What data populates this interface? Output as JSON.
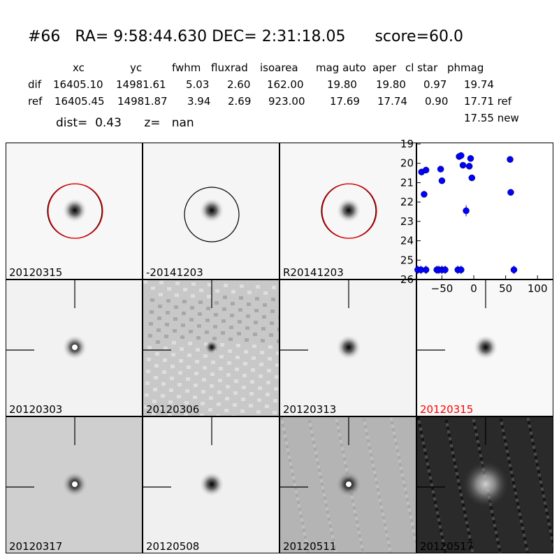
{
  "header": {
    "title": "#66   RA= 9:58:44.630 DEC= 2:31:18.05      score=60.0",
    "columns": [
      "xc",
      "yc",
      "fwhm",
      "fluxrad",
      "isoarea",
      "mag auto",
      "aper",
      "cl star",
      "phmag"
    ],
    "dif": {
      "label": "dif",
      "values": [
        "16405.10",
        "14981.61",
        "5.03",
        "2.60",
        "162.00",
        "19.80",
        "19.80",
        "0.97",
        "19.74"
      ]
    },
    "ref": {
      "label": "ref",
      "values": [
        "16405.45",
        "14981.87",
        "3.94",
        "2.69",
        "923.00",
        "17.69",
        "17.74",
        "0.90",
        "17.71 ref"
      ]
    },
    "phmag_new": "17.55 new",
    "dist_line": "dist=  0.43      z=   nan"
  },
  "panels": [
    {
      "label": "20120315",
      "color": "#000000",
      "bg": "#f7f7f7"
    },
    {
      "label": "-20141203",
      "color": "#000000",
      "bg": "#f5f5f5"
    },
    {
      "label": "R20141203",
      "color": "#000000",
      "bg": "#f7f7f7"
    },
    {
      "label": "20120303",
      "color": "#000000",
      "bg": "#f2f2f2"
    },
    {
      "label": "20120306",
      "color": "#000000",
      "bg": "#c8c8c8"
    },
    {
      "label": "20120313",
      "color": "#000000",
      "bg": "#f3f3f3"
    },
    {
      "label": "20120315",
      "color": "#ff0000",
      "bg": "#f8f8f8"
    },
    {
      "label": "20120317",
      "color": "#000000",
      "bg": "#cfcfcf"
    },
    {
      "label": "20120508",
      "color": "#000000",
      "bg": "#f0f0f0"
    },
    {
      "label": "20120511",
      "color": "#000000",
      "bg": "#b4b4b4"
    },
    {
      "label": "20120517",
      "color": "#000000",
      "bg": "#2a2a2a"
    }
  ],
  "chart_data": {
    "type": "scatter",
    "xlim": [
      -90,
      125
    ],
    "ylim": [
      26,
      19
    ],
    "xticks": [
      -50,
      0,
      50,
      100
    ],
    "yticks": [
      19,
      20,
      21,
      22,
      23,
      24,
      25,
      26
    ],
    "marker_color": "#0000ff",
    "points": [
      {
        "x": -82,
        "y": 20.45
      },
      {
        "x": -75,
        "y": 20.35
      },
      {
        "x": -78,
        "y": 21.6
      },
      {
        "x": -52,
        "y": 20.3
      },
      {
        "x": -50,
        "y": 20.9
      },
      {
        "x": -23,
        "y": 19.65
      },
      {
        "x": -20,
        "y": 19.6
      },
      {
        "x": -17,
        "y": 20.1
      },
      {
        "x": -7,
        "y": 20.15
      },
      {
        "x": -5,
        "y": 19.75
      },
      {
        "x": -3,
        "y": 20.75
      },
      {
        "x": -12,
        "y": 22.45
      },
      {
        "x": 57,
        "y": 19.8
      },
      {
        "x": 58,
        "y": 21.5
      },
      {
        "x": -88,
        "y": 25.5
      },
      {
        "x": -83,
        "y": 25.5
      },
      {
        "x": -75,
        "y": 25.5
      },
      {
        "x": -58,
        "y": 25.5
      },
      {
        "x": -55,
        "y": 25.5
      },
      {
        "x": -50,
        "y": 25.5
      },
      {
        "x": -45,
        "y": 25.5
      },
      {
        "x": -25,
        "y": 25.5
      },
      {
        "x": -20,
        "y": 25.5
      },
      {
        "x": 63,
        "y": 25.5
      }
    ]
  }
}
